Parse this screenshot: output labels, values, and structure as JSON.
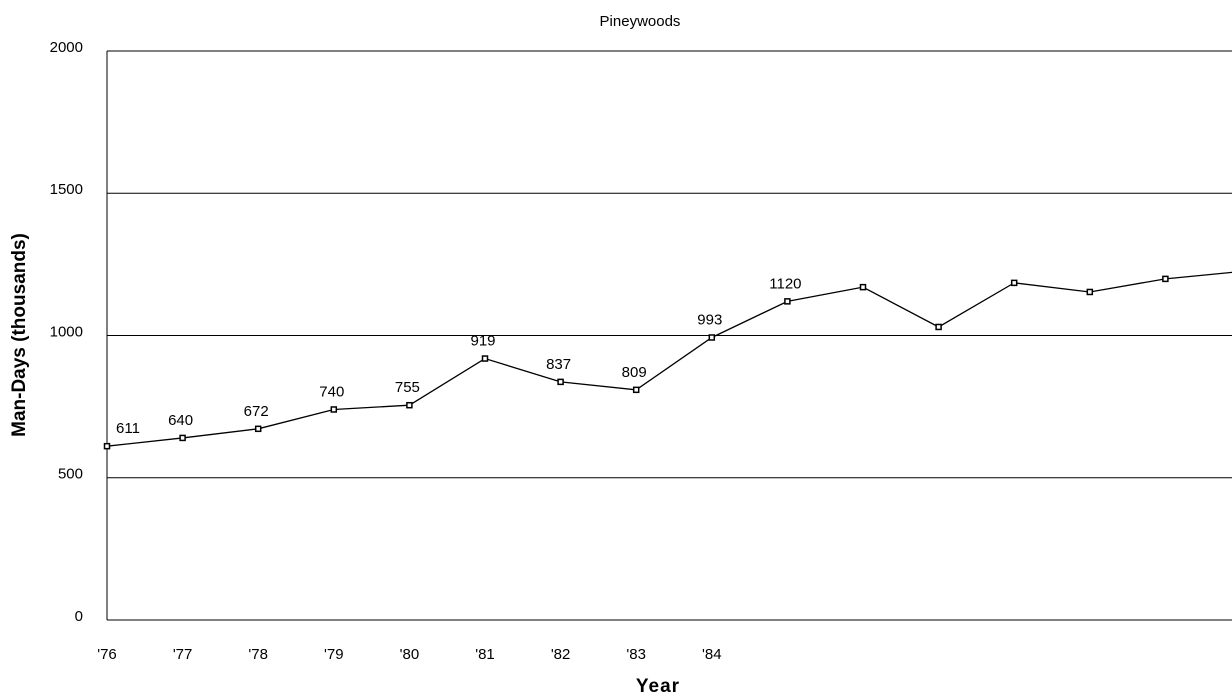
{
  "chart_data": {
    "type": "line",
    "title": "Pineywoods",
    "x_label": "Year",
    "y_label": "Man-Days (thousands)",
    "categories": [
      "'76",
      "'77",
      "'78",
      "'79",
      "'80",
      "'81",
      "'82",
      "'83",
      "'84",
      null,
      null,
      null,
      null,
      null,
      null,
      null
    ],
    "values": [
      611,
      640,
      672,
      740,
      755,
      919,
      837,
      809,
      993,
      1120,
      1170,
      1030,
      1185,
      1153,
      1199,
      1225
    ],
    "value_labels": [
      "611",
      "640",
      "672",
      "740",
      "755",
      "919",
      "837",
      "809",
      "993",
      "1120",
      null,
      null,
      null,
      null,
      null,
      null
    ],
    "color": "#000000",
    "ylim": [
      0,
      2000
    ],
    "yticks": [
      0,
      500,
      1000,
      1500,
      2000
    ],
    "grid": true
  }
}
